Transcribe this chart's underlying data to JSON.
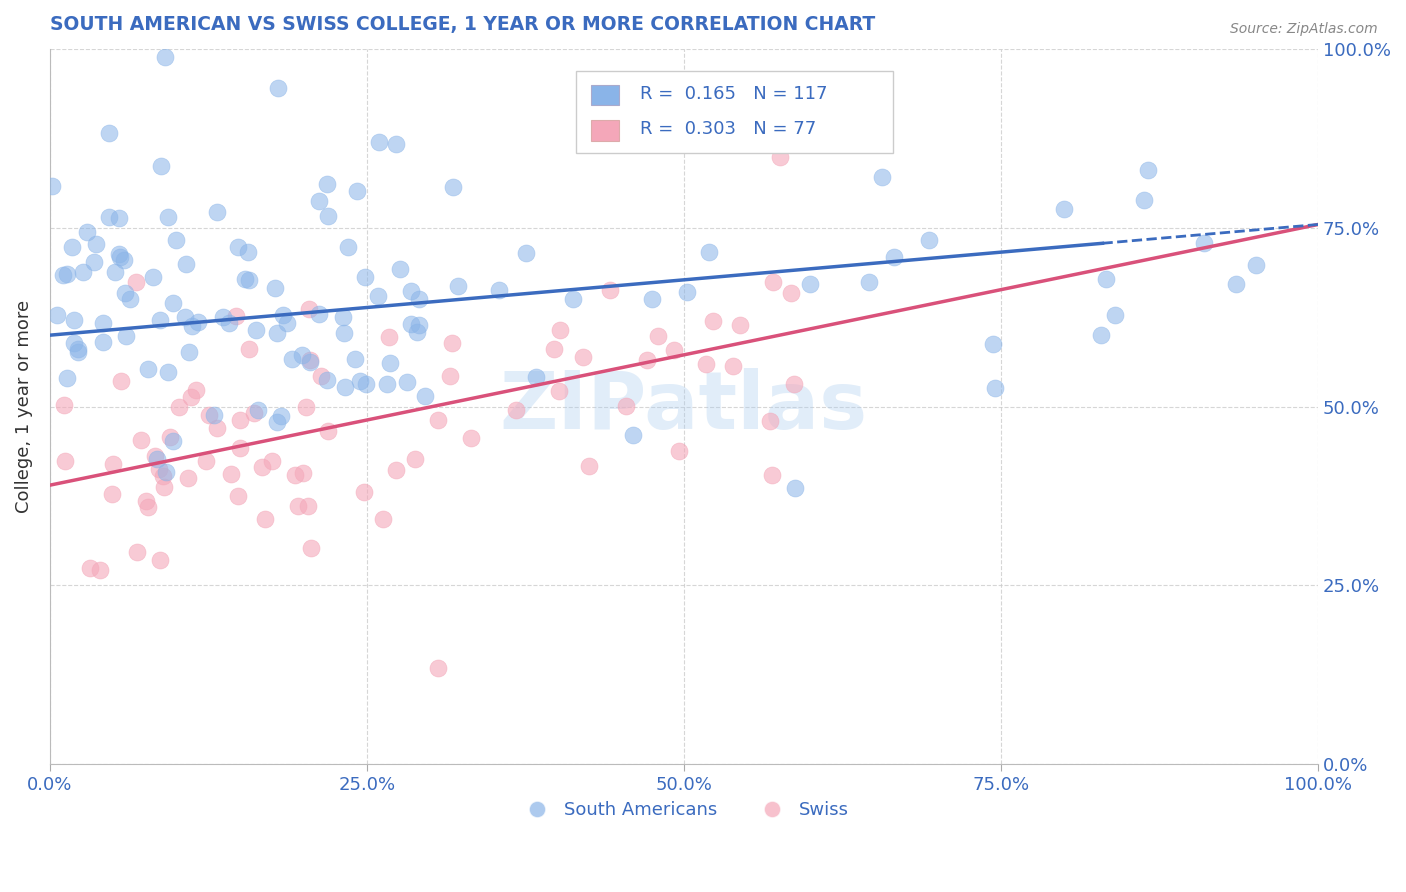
{
  "title": "SOUTH AMERICAN VS SWISS COLLEGE, 1 YEAR OR MORE CORRELATION CHART",
  "source_text": "Source: ZipAtlas.com",
  "ylabel": "College, 1 year or more",
  "xlim": [
    0.0,
    1.0
  ],
  "ylim": [
    0.0,
    1.0
  ],
  "xticks": [
    0.0,
    0.25,
    0.5,
    0.75,
    1.0
  ],
  "yticks": [
    0.0,
    0.25,
    0.5,
    0.75,
    1.0
  ],
  "xtick_labels": [
    "0.0%",
    "25.0%",
    "50.0%",
    "75.0%",
    "100.0%"
  ],
  "ytick_labels": [
    "0.0%",
    "25.0%",
    "50.0%",
    "75.0%",
    "100.0%"
  ],
  "sa_color": "#8AB4E8",
  "sw_color": "#F4A7B9",
  "sa_line_color": "#3B6BBF",
  "sw_line_color": "#D9517A",
  "title_color": "#3B6BBF",
  "tick_color": "#3B6BBF",
  "ylabel_color": "#333333",
  "grid_color": "#CCCCCC",
  "watermark": "ZIPatlas",
  "legend_sa": "South Americans",
  "legend_sw": "Swiss",
  "sa_R": 0.165,
  "sa_N": 117,
  "sw_R": 0.303,
  "sw_N": 77,
  "sa_line_x0": 0.0,
  "sa_line_y0": 0.6,
  "sa_line_x1": 1.0,
  "sa_line_y1": 0.755,
  "sw_line_x0": 0.0,
  "sw_line_y0": 0.39,
  "sw_line_x1": 1.0,
  "sw_line_y1": 0.755
}
